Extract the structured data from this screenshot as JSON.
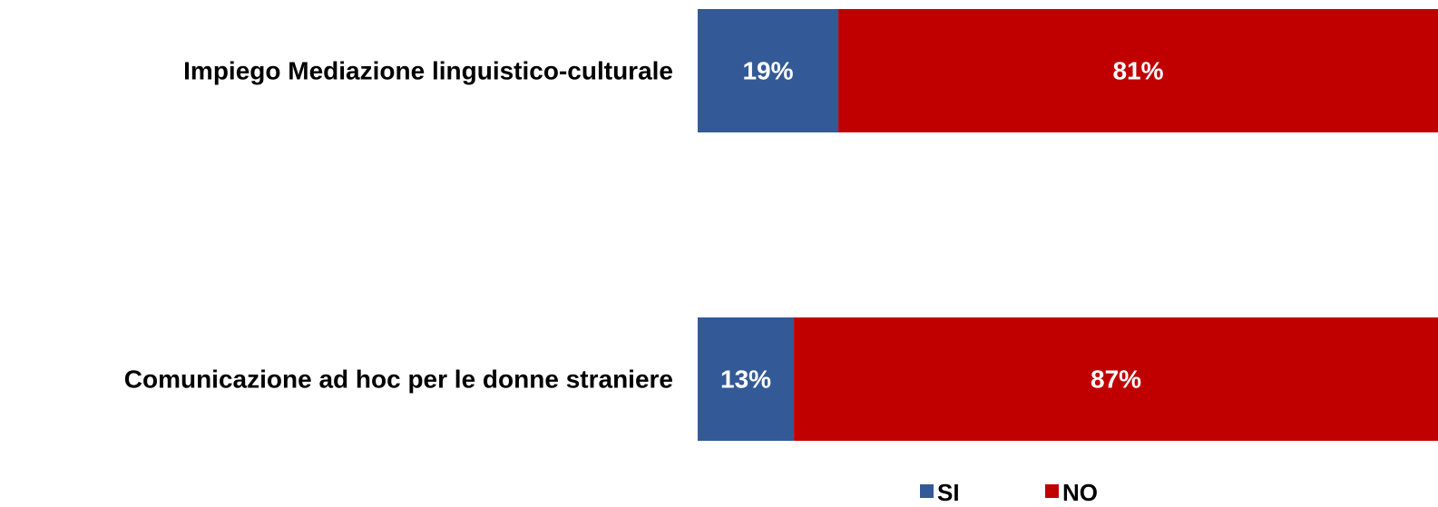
{
  "chart_data": {
    "type": "bar",
    "orientation": "horizontal",
    "stacked": true,
    "percent": true,
    "categories": [
      "Impiego Mediazione linguistico-culturale",
      "Comunicazione ad hoc per le donne straniere"
    ],
    "series": [
      {
        "name": "SI",
        "color": "#335a96",
        "values": [
          19,
          13
        ],
        "labels": [
          "19%",
          "13%"
        ]
      },
      {
        "name": "NO",
        "color": "#c00000",
        "values": [
          81,
          87
        ],
        "labels": [
          "81%",
          "87%"
        ]
      }
    ],
    "xlim": [
      0,
      100
    ],
    "grid": false,
    "legend": "bottom"
  }
}
